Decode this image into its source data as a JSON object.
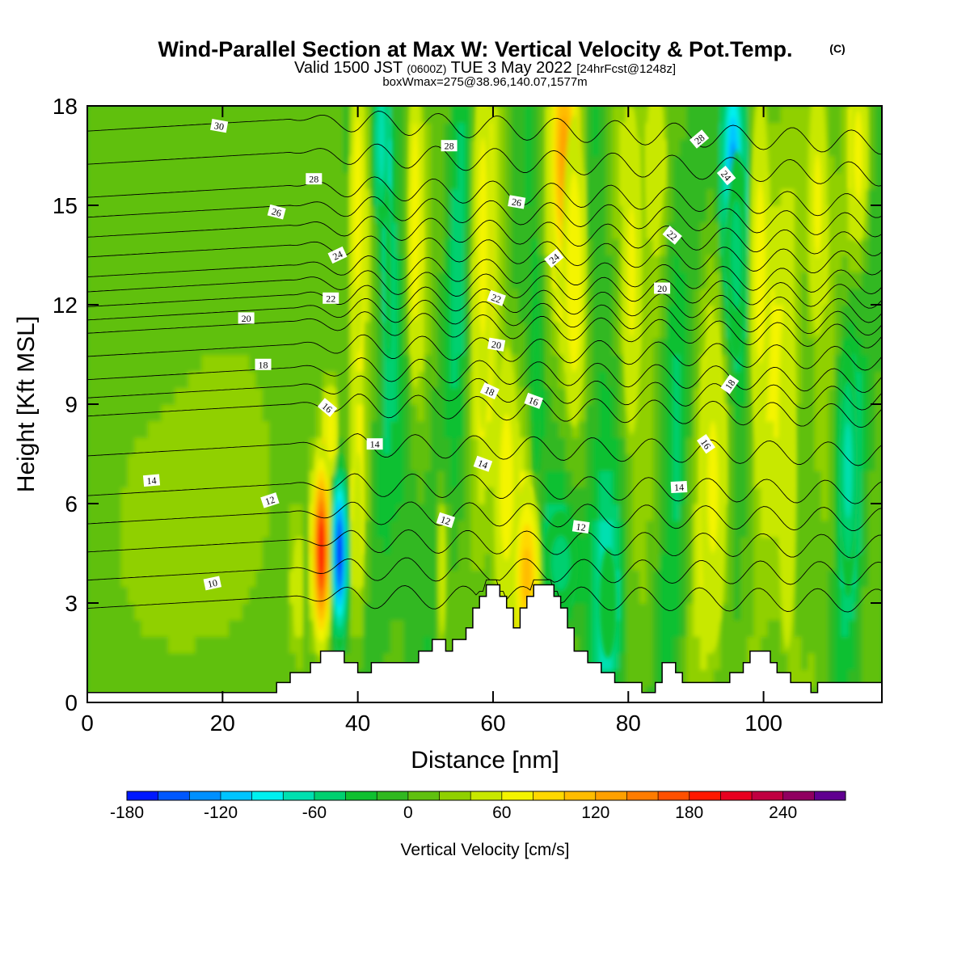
{
  "chart_data": {
    "type": "heatmap",
    "title": "Wind-Parallel Section at Max W: Vertical Velocity & Pot.Temp.",
    "title_mark": "(C)",
    "subtitle_parts": [
      "Valid 1500 JST ",
      "(0600Z)",
      " TUE 3 May 2022 ",
      "[24hrFcst@1248z]"
    ],
    "subtitle2": "boxWmax=275@38.96,140.07,1577m",
    "xlabel": "Distance [nm]",
    "ylabel": "Height [Kft MSL]",
    "xlim": [
      0,
      117.5
    ],
    "ylim": [
      0,
      18
    ],
    "x_ticks": [
      "0",
      "20",
      "40",
      "60",
      "80",
      "100"
    ],
    "x_tick_values": [
      0,
      20,
      40,
      60,
      80,
      100
    ],
    "y_ticks": [
      "0",
      "3",
      "6",
      "9",
      "12",
      "15",
      "18"
    ],
    "y_tick_values": [
      0,
      3,
      6,
      9,
      12,
      15,
      18
    ],
    "colorbar": {
      "label": "Vertical Velocity [cm/s]",
      "range": [
        -180,
        280
      ],
      "step": 20,
      "tick_labels": [
        "-180",
        "-120",
        "-60",
        "0",
        "60",
        "120",
        "180",
        "240"
      ],
      "tick_values": [
        -180,
        -120,
        -60,
        0,
        60,
        120,
        180,
        240
      ],
      "colors": [
        "#0018ff",
        "#0058ff",
        "#0090ff",
        "#00c4ff",
        "#00f0f0",
        "#00e0b0",
        "#00d070",
        "#10c030",
        "#30b820",
        "#60c010",
        "#90d000",
        "#c8e800",
        "#f4f400",
        "#ffd800",
        "#ffbc00",
        "#ffa000",
        "#ff7c00",
        "#ff5000",
        "#ff1800",
        "#e80020",
        "#c00040",
        "#900060",
        "#600090"
      ]
    },
    "terrain": [
      {
        "x": 0,
        "z": 0.3
      },
      {
        "x": 28,
        "z": 0.3
      },
      {
        "x": 28,
        "z": 0.6
      },
      {
        "x": 30,
        "z": 0.6
      },
      {
        "x": 30,
        "z": 0.9
      },
      {
        "x": 33,
        "z": 0.9
      },
      {
        "x": 33,
        "z": 1.2
      },
      {
        "x": 34.5,
        "z": 1.2
      },
      {
        "x": 34.5,
        "z": 1.55
      },
      {
        "x": 38,
        "z": 1.55
      },
      {
        "x": 38,
        "z": 1.2
      },
      {
        "x": 40,
        "z": 1.2
      },
      {
        "x": 40,
        "z": 0.9
      },
      {
        "x": 42,
        "z": 0.9
      },
      {
        "x": 42,
        "z": 1.2
      },
      {
        "x": 49,
        "z": 1.2
      },
      {
        "x": 49,
        "z": 1.55
      },
      {
        "x": 51,
        "z": 1.55
      },
      {
        "x": 51,
        "z": 1.9
      },
      {
        "x": 53,
        "z": 1.9
      },
      {
        "x": 53,
        "z": 1.55
      },
      {
        "x": 54,
        "z": 1.55
      },
      {
        "x": 54,
        "z": 1.9
      },
      {
        "x": 56,
        "z": 1.9
      },
      {
        "x": 56,
        "z": 2.25
      },
      {
        "x": 57,
        "z": 2.25
      },
      {
        "x": 57,
        "z": 2.85
      },
      {
        "x": 58,
        "z": 2.85
      },
      {
        "x": 58,
        "z": 3.2
      },
      {
        "x": 59,
        "z": 3.2
      },
      {
        "x": 59,
        "z": 3.55
      },
      {
        "x": 61,
        "z": 3.55
      },
      {
        "x": 61,
        "z": 3.2
      },
      {
        "x": 62,
        "z": 3.2
      },
      {
        "x": 62,
        "z": 2.85
      },
      {
        "x": 63,
        "z": 2.85
      },
      {
        "x": 63,
        "z": 2.25
      },
      {
        "x": 64,
        "z": 2.25
      },
      {
        "x": 64,
        "z": 2.85
      },
      {
        "x": 65,
        "z": 2.85
      },
      {
        "x": 65,
        "z": 3.2
      },
      {
        "x": 66,
        "z": 3.2
      },
      {
        "x": 66,
        "z": 3.55
      },
      {
        "x": 69,
        "z": 3.55
      },
      {
        "x": 69,
        "z": 3.2
      },
      {
        "x": 70,
        "z": 3.2
      },
      {
        "x": 70,
        "z": 2.85
      },
      {
        "x": 71,
        "z": 2.85
      },
      {
        "x": 71,
        "z": 2.25
      },
      {
        "x": 72,
        "z": 2.25
      },
      {
        "x": 72,
        "z": 1.55
      },
      {
        "x": 74,
        "z": 1.55
      },
      {
        "x": 74,
        "z": 1.2
      },
      {
        "x": 76,
        "z": 1.2
      },
      {
        "x": 76,
        "z": 0.9
      },
      {
        "x": 78,
        "z": 0.9
      },
      {
        "x": 78,
        "z": 0.6
      },
      {
        "x": 82,
        "z": 0.6
      },
      {
        "x": 82,
        "z": 0.3
      },
      {
        "x": 84,
        "z": 0.3
      },
      {
        "x": 84,
        "z": 0.6
      },
      {
        "x": 85,
        "z": 0.6
      },
      {
        "x": 85,
        "z": 1.2
      },
      {
        "x": 87,
        "z": 1.2
      },
      {
        "x": 87,
        "z": 0.9
      },
      {
        "x": 88,
        "z": 0.9
      },
      {
        "x": 88,
        "z": 0.6
      },
      {
        "x": 95,
        "z": 0.6
      },
      {
        "x": 95,
        "z": 0.9
      },
      {
        "x": 97,
        "z": 0.9
      },
      {
        "x": 97,
        "z": 1.2
      },
      {
        "x": 98,
        "z": 1.2
      },
      {
        "x": 98,
        "z": 1.55
      },
      {
        "x": 101,
        "z": 1.55
      },
      {
        "x": 101,
        "z": 1.2
      },
      {
        "x": 102,
        "z": 1.2
      },
      {
        "x": 102,
        "z": 0.9
      },
      {
        "x": 104,
        "z": 0.9
      },
      {
        "x": 104,
        "z": 0.6
      },
      {
        "x": 107,
        "z": 0.6
      },
      {
        "x": 107,
        "z": 0.3
      },
      {
        "x": 108,
        "z": 0.3
      },
      {
        "x": 108,
        "z": 0.6
      },
      {
        "x": 117.5,
        "z": 0.6
      }
    ],
    "w_cells": [
      {
        "x": 34.6,
        "z": 4.6,
        "sx": 0.9,
        "sz": 1.8,
        "w": 200
      },
      {
        "x": 37.3,
        "z": 4.5,
        "sx": 0.8,
        "sz": 1.7,
        "w": -190
      },
      {
        "x": 31.0,
        "z": 3.4,
        "sx": 0.6,
        "sz": 1.6,
        "w": 60
      },
      {
        "x": 36.0,
        "z": 8.2,
        "sx": 0.8,
        "sz": 1.2,
        "w": 80
      },
      {
        "x": 40.0,
        "z": 5.4,
        "sx": 0.9,
        "sz": 2.4,
        "w": 60
      },
      {
        "x": 40.0,
        "z": 15.0,
        "sx": 1.0,
        "sz": 4.0,
        "w": 75
      },
      {
        "x": 43.5,
        "z": 17.0,
        "sx": 0.8,
        "sz": 2.0,
        "w": -100
      },
      {
        "x": 44.5,
        "z": 13.0,
        "sx": 0.7,
        "sz": 4.0,
        "w": -50
      },
      {
        "x": 47.5,
        "z": 6.5,
        "sx": 1.5,
        "sz": 4.0,
        "w": -40
      },
      {
        "x": 48.5,
        "z": 14.5,
        "sx": 1.0,
        "sz": 4.5,
        "w": 75
      },
      {
        "x": 52.5,
        "z": 4.0,
        "sx": 0.6,
        "sz": 2.2,
        "w": 60
      },
      {
        "x": 55.0,
        "z": 13.5,
        "sx": 1.2,
        "sz": 5.5,
        "w": -40
      },
      {
        "x": 58.5,
        "z": 14.0,
        "sx": 1.3,
        "sz": 5.5,
        "w": 70
      },
      {
        "x": 62.0,
        "z": 6.5,
        "sx": 1.8,
        "sz": 4.0,
        "w": 70
      },
      {
        "x": 65.0,
        "z": 3.8,
        "sx": 1.5,
        "sz": 2.0,
        "w": 110
      },
      {
        "x": 66.5,
        "z": 9.5,
        "sx": 1.0,
        "sz": 4.0,
        "w": -50
      },
      {
        "x": 70.5,
        "z": 16.5,
        "sx": 1.5,
        "sz": 3.0,
        "w": 130
      },
      {
        "x": 72.0,
        "z": 13.0,
        "sx": 1.5,
        "sz": 4.0,
        "w": 80
      },
      {
        "x": 70.0,
        "z": 4.2,
        "sx": 2.5,
        "sz": 1.5,
        "w": -70
      },
      {
        "x": 75.5,
        "z": 10.0,
        "sx": 1.8,
        "sz": 6.0,
        "w": -40
      },
      {
        "x": 77.0,
        "z": 3.0,
        "sx": 2.0,
        "sz": 2.5,
        "w": -50
      },
      {
        "x": 80.5,
        "z": 13.0,
        "sx": 1.5,
        "sz": 5.0,
        "w": 65
      },
      {
        "x": 84.0,
        "z": 16.5,
        "sx": 1.5,
        "sz": 2.5,
        "w": 60
      },
      {
        "x": 86.5,
        "z": 11.0,
        "sx": 1.2,
        "sz": 6.0,
        "w": -40
      },
      {
        "x": 95.5,
        "z": 16.0,
        "sx": 1.2,
        "sz": 2.5,
        "w": -150
      },
      {
        "x": 96.0,
        "z": 13.5,
        "sx": 1.5,
        "sz": 3.0,
        "w": -70
      },
      {
        "x": 92.5,
        "z": 6.5,
        "sx": 2.0,
        "sz": 5.0,
        "w": 65
      },
      {
        "x": 99.5,
        "z": 13.0,
        "sx": 1.5,
        "sz": 5.0,
        "w": 70
      },
      {
        "x": 103.5,
        "z": 7.0,
        "sx": 1.5,
        "sz": 6.0,
        "w": 60
      },
      {
        "x": 108.0,
        "z": 15.0,
        "sx": 1.5,
        "sz": 4.0,
        "w": 65
      },
      {
        "x": 112.5,
        "z": 7.0,
        "sx": 1.2,
        "sz": 3.0,
        "w": -90
      },
      {
        "x": 114.0,
        "z": 16.5,
        "sx": 1.2,
        "sz": 2.5,
        "w": 70
      },
      {
        "x": 10.0,
        "z": 5.0,
        "sx": 8.0,
        "sz": 4.0,
        "w": 25
      },
      {
        "x": 22.0,
        "z": 7.0,
        "sx": 6.0,
        "sz": 4.0,
        "w": 25
      }
    ],
    "theta_contours": [
      {
        "label": "10",
        "z": 3.2
      },
      {
        "label": "12",
        "z": 4.9
      },
      {
        "label": "14",
        "z": 6.6
      },
      {
        "label": "16",
        "z": 9.0
      },
      {
        "label": "18",
        "z": 10.1
      },
      {
        "label": "20",
        "z": 11.5
      },
      {
        "label": "22",
        "z": 12.3
      },
      {
        "label": "24",
        "z": 13.2
      },
      {
        "label": "26",
        "z": 14.4
      },
      {
        "label": "28",
        "z": 15.6
      },
      {
        "label": "30",
        "z": 17.6
      }
    ],
    "contour_labels": [
      {
        "text": "10",
        "x": 18.5,
        "z": 3.6,
        "rot": -12
      },
      {
        "text": "12",
        "x": 27.0,
        "z": 6.1,
        "rot": -18
      },
      {
        "text": "12",
        "x": 53.0,
        "z": 5.5,
        "rot": 18
      },
      {
        "text": "12",
        "x": 73.0,
        "z": 5.3,
        "rot": 8
      },
      {
        "text": "14",
        "x": 9.5,
        "z": 6.7,
        "rot": -5
      },
      {
        "text": "14",
        "x": 42.5,
        "z": 7.8,
        "rot": 0
      },
      {
        "text": "14",
        "x": 58.5,
        "z": 7.2,
        "rot": 20
      },
      {
        "text": "14",
        "x": 87.5,
        "z": 6.5,
        "rot": -3
      },
      {
        "text": "16",
        "x": 35.5,
        "z": 8.9,
        "rot": 40
      },
      {
        "text": "16",
        "x": 66.0,
        "z": 9.1,
        "rot": 20
      },
      {
        "text": "16",
        "x": 91.5,
        "z": 7.8,
        "rot": 55
      },
      {
        "text": "18",
        "x": 26.0,
        "z": 10.2,
        "rot": 0
      },
      {
        "text": "18",
        "x": 59.5,
        "z": 9.4,
        "rot": 25
      },
      {
        "text": "18",
        "x": 95.0,
        "z": 9.6,
        "rot": -55
      },
      {
        "text": "20",
        "x": 23.5,
        "z": 11.6,
        "rot": 0
      },
      {
        "text": "20",
        "x": 60.5,
        "z": 10.8,
        "rot": 10
      },
      {
        "text": "20",
        "x": 85.0,
        "z": 12.5,
        "rot": 0
      },
      {
        "text": "22",
        "x": 36.0,
        "z": 12.2,
        "rot": 0
      },
      {
        "text": "22",
        "x": 60.5,
        "z": 12.2,
        "rot": 20
      },
      {
        "text": "22",
        "x": 86.5,
        "z": 14.1,
        "rot": 40
      },
      {
        "text": "24",
        "x": 37.0,
        "z": 13.5,
        "rot": -25
      },
      {
        "text": "24",
        "x": 69.0,
        "z": 13.4,
        "rot": -40
      },
      {
        "text": "24",
        "x": 94.5,
        "z": 15.9,
        "rot": 50
      },
      {
        "text": "26",
        "x": 28.0,
        "z": 14.8,
        "rot": 15
      },
      {
        "text": "26",
        "x": 63.5,
        "z": 15.1,
        "rot": 10
      },
      {
        "text": "28",
        "x": 33.5,
        "z": 15.8,
        "rot": 0
      },
      {
        "text": "28",
        "x": 53.5,
        "z": 16.8,
        "rot": 0
      },
      {
        "text": "28",
        "x": 90.5,
        "z": 17.0,
        "rot": -40
      },
      {
        "text": "30",
        "x": 19.5,
        "z": 17.4,
        "rot": 10
      }
    ]
  }
}
